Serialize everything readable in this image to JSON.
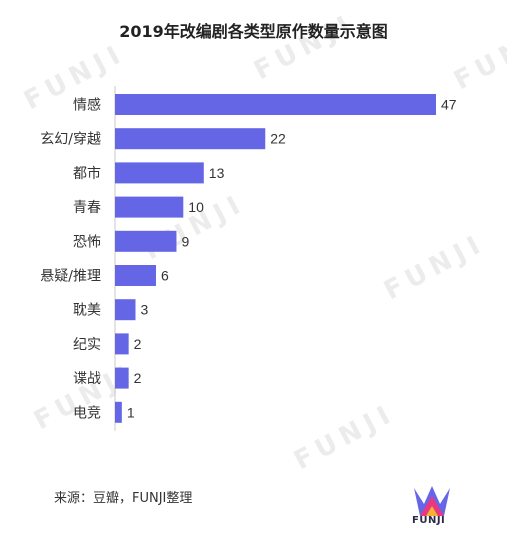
{
  "title": "2019年改编剧各类型原作数量示意图",
  "source": "来源：豆瓣，FUNJI整理",
  "watermark_text": "FUNJI",
  "logo_text": "FUNJI",
  "colors": {
    "bar": "#6466e6",
    "axis": "#c8c8c8",
    "watermark": "#ececec"
  },
  "chart_data": {
    "type": "bar",
    "orientation": "horizontal",
    "categories": [
      "情感",
      "玄幻/穿越",
      "都市",
      "青春",
      "恐怖",
      "悬疑/推理",
      "耽美",
      "纪实",
      "谍战",
      "电竞"
    ],
    "values": [
      47,
      22,
      13,
      10,
      9,
      6,
      3,
      2,
      2,
      1
    ],
    "title": "2019年改编剧各类型原作数量示意图",
    "xlabel": "",
    "ylabel": "",
    "xlim": [
      0,
      47
    ],
    "grid": false,
    "legend": "none",
    "data_labels": true
  }
}
